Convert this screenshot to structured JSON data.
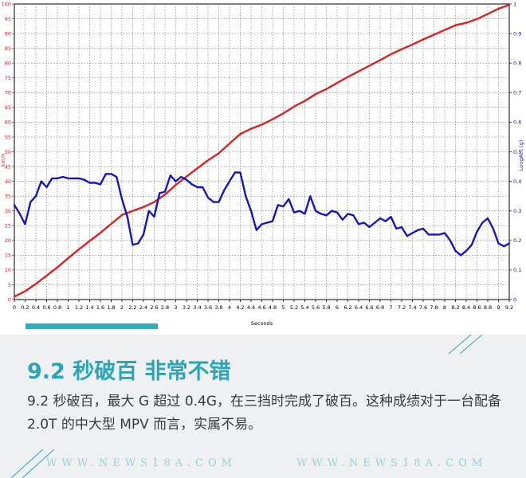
{
  "chart_data": {
    "type": "line",
    "xlabel": "Seconds",
    "ylabel": "km/h",
    "y2label": "LongAcc (g)",
    "xlim": [
      0,
      9.2
    ],
    "ylim": [
      0,
      100
    ],
    "y2lim": [
      0,
      1
    ],
    "grid": true,
    "x_ticks": [
      0,
      0.2,
      0.4,
      0.6,
      0.8,
      1,
      1.2,
      1.4,
      1.6,
      1.8,
      2,
      2.2,
      2.4,
      2.6,
      2.8,
      3,
      3.2,
      3.4,
      3.6,
      3.8,
      4,
      4.2,
      4.4,
      4.6,
      4.8,
      5,
      5.2,
      5.4,
      5.6,
      5.8,
      6,
      6.2,
      6.4,
      6.6,
      6.8,
      7,
      7.2,
      7.4,
      7.6,
      7.8,
      8,
      8.2,
      8.4,
      8.6,
      8.8,
      9,
      9.2
    ],
    "x_tick_labels": [
      "0",
      "0.2",
      "0.4",
      "0.6",
      "0.8",
      "1",
      "1.2",
      "1.4",
      "1.6",
      "1.8",
      "2",
      "2.2",
      "2.4",
      "2.6",
      "2.8",
      "3",
      "3.2",
      "3.4",
      "3.6",
      "3.8",
      "4",
      "4.2",
      "4.4",
      "4.6",
      "4.8",
      "5",
      "5.2",
      "5.4",
      "5.6",
      "5.8",
      "6",
      "6.2",
      "6.4",
      "6.6",
      "6.8",
      "7",
      "7.2",
      "7.4",
      "7.6",
      "7.8",
      "8",
      "8.2",
      "8.4",
      "8.6",
      "8.8",
      "9",
      "9.2"
    ],
    "y_ticks": [
      0,
      5,
      10,
      15,
      20,
      25,
      30,
      35,
      40,
      45,
      50,
      55,
      60,
      65,
      70,
      75,
      80,
      85,
      90,
      95,
      100
    ],
    "y_tick_labels": [
      "0",
      "5",
      "10",
      "15",
      "20",
      "25",
      "30",
      "35",
      "40",
      "45",
      "50",
      "55",
      "60",
      "65",
      "70",
      "75",
      "80",
      "85",
      "90",
      "95",
      "100"
    ],
    "y2_ticks": [
      0,
      0.1,
      0.2,
      0.3,
      0.4,
      0.5,
      0.6,
      0.7,
      0.8,
      0.9,
      1
    ],
    "y2_tick_labels": [
      "0",
      "0.1",
      "0.2",
      "0.3",
      "0.4",
      "0.5",
      "0.6",
      "0.7",
      "0.8",
      "0.9",
      "1"
    ],
    "series": [
      {
        "axis": "left",
        "color": "#e02020",
        "x": [
          0,
          0.2,
          0.4,
          0.6,
          0.8,
          1,
          1.2,
          1.4,
          1.6,
          1.8,
          2,
          2.2,
          2.4,
          2.6,
          2.8,
          3,
          3.2,
          3.4,
          3.6,
          3.8,
          4,
          4.2,
          4.4,
          4.6,
          4.8,
          5,
          5.2,
          5.4,
          5.6,
          5.8,
          6,
          6.2,
          6.4,
          6.6,
          6.8,
          7,
          7.2,
          7.4,
          7.6,
          7.8,
          8,
          8.2,
          8.4,
          8.6,
          8.8,
          9,
          9.2
        ],
        "values": [
          1,
          2.8,
          5.3,
          8.1,
          10.9,
          14,
          17,
          19.8,
          22.6,
          25.6,
          28.6,
          30,
          31.3,
          33,
          35.5,
          38.8,
          41.6,
          44.4,
          47.1,
          49.5,
          52.8,
          56,
          57.8,
          59.2,
          61,
          63,
          65.3,
          67.2,
          69.5,
          71.2,
          73.3,
          75.3,
          77.2,
          79.1,
          81,
          83,
          84.7,
          86.3,
          88,
          89.6,
          91.2,
          92.8,
          93.6,
          94.9,
          96.6,
          98.4,
          99.7
        ]
      },
      {
        "axis": "right",
        "color": "#1414c8",
        "x": [
          0,
          0.1,
          0.2,
          0.3,
          0.4,
          0.5,
          0.6,
          0.7,
          0.8,
          0.9,
          1,
          1.1,
          1.2,
          1.3,
          1.4,
          1.5,
          1.6,
          1.7,
          1.8,
          1.9,
          2,
          2.1,
          2.2,
          2.3,
          2.4,
          2.5,
          2.6,
          2.7,
          2.8,
          2.9,
          3,
          3.1,
          3.2,
          3.3,
          3.4,
          3.5,
          3.6,
          3.7,
          3.8,
          3.9,
          4,
          4.1,
          4.2,
          4.3,
          4.4,
          4.5,
          4.6,
          4.7,
          4.8,
          4.9,
          5,
          5.1,
          5.2,
          5.3,
          5.4,
          5.5,
          5.6,
          5.7,
          5.8,
          5.9,
          6,
          6.1,
          6.2,
          6.3,
          6.4,
          6.5,
          6.6,
          6.7,
          6.8,
          6.9,
          7,
          7.1,
          7.2,
          7.3,
          7.4,
          7.5,
          7.6,
          7.7,
          7.8,
          7.9,
          8,
          8.1,
          8.2,
          8.3,
          8.4,
          8.5,
          8.6,
          8.7,
          8.8,
          8.9,
          9,
          9.1,
          9.2
        ],
        "values": [
          0.32,
          0.29,
          0.255,
          0.33,
          0.35,
          0.4,
          0.38,
          0.41,
          0.41,
          0.415,
          0.41,
          0.41,
          0.41,
          0.405,
          0.395,
          0.395,
          0.39,
          0.425,
          0.425,
          0.415,
          0.34,
          0.28,
          0.185,
          0.19,
          0.22,
          0.3,
          0.28,
          0.36,
          0.365,
          0.42,
          0.4,
          0.415,
          0.405,
          0.39,
          0.38,
          0.38,
          0.345,
          0.33,
          0.33,
          0.37,
          0.4,
          0.43,
          0.43,
          0.35,
          0.3,
          0.235,
          0.255,
          0.26,
          0.265,
          0.32,
          0.315,
          0.34,
          0.295,
          0.3,
          0.29,
          0.35,
          0.3,
          0.29,
          0.285,
          0.3,
          0.295,
          0.27,
          0.29,
          0.285,
          0.255,
          0.26,
          0.245,
          0.26,
          0.275,
          0.265,
          0.28,
          0.24,
          0.245,
          0.215,
          0.225,
          0.235,
          0.24,
          0.22,
          0.22,
          0.22,
          0.225,
          0.2,
          0.165,
          0.15,
          0.165,
          0.185,
          0.23,
          0.26,
          0.275,
          0.24,
          0.19,
          0.18,
          0.19
        ]
      }
    ]
  },
  "article": {
    "headline": "9.2 秒破百 非常不错",
    "body": "9.2 秒破百，最大 G 超过 0.4G，在三挡时完成了破百。这种成绩对于一台配备 2.0T 的中大型 MPV 而言，实属不易。"
  },
  "watermark": {
    "text_left": "WWW.NEWS18A.COM",
    "text_right": "WWW.NEWS18A.COM"
  },
  "theme": {
    "accent": "#2aa7b6",
    "panel_bg": "#eef0f1",
    "left_axis_color": "#e02020",
    "right_axis_color": "#1414c8"
  }
}
